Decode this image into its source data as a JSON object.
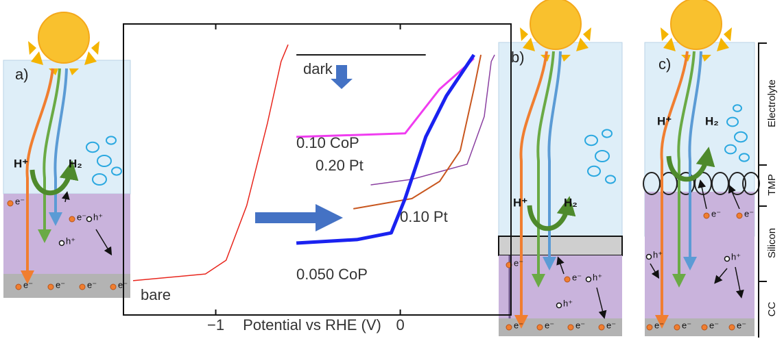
{
  "chart_data": {
    "type": "line",
    "x_label": "Potential vs RHE (V)",
    "xlim": [
      -1.5,
      0.6
    ],
    "xticks": [
      {
        "value": -1,
        "label": "−1"
      },
      0
    ],
    "ylim": [
      0,
      1
    ],
    "series": [
      {
        "name": "bare",
        "color": "#e8251c",
        "x": [
          -1.448,
          -1.056,
          -0.944,
          -0.832,
          -0.72,
          -0.646,
          -0.608
        ],
        "values": [
          0.118,
          0.141,
          0.188,
          0.376,
          0.659,
          0.871,
          0.929
        ]
      },
      {
        "name": "dark",
        "color": "#111111",
        "x": [
          -0.563,
          0.138
        ],
        "values": [
          0.894,
          0.894
        ]
      },
      {
        "name": "0.10 CoP",
        "color": "#f03cf0",
        "x": [
          -0.563,
          0.026,
          0.213,
          0.362,
          0.399
        ],
        "values": [
          0.612,
          0.624,
          0.776,
          0.859,
          0.882
        ]
      },
      {
        "name": "0.20 Pt",
        "color": "#8a3fa0",
        "x": [
          -0.16,
          0.063,
          0.362,
          0.455,
          0.493,
          0.511
        ],
        "values": [
          0.447,
          0.466,
          0.518,
          0.682,
          0.871,
          0.894
        ]
      },
      {
        "name": "0.10 Pt",
        "color": "#c8561e",
        "x": [
          -0.254,
          0.063,
          0.213,
          0.325,
          0.399,
          0.437
        ],
        "values": [
          0.365,
          0.4,
          0.459,
          0.565,
          0.776,
          0.894
        ]
      },
      {
        "name": "0.050 CoP",
        "color": "#1a22f0",
        "x": [
          -0.563,
          -0.235,
          -0.049,
          0.026,
          0.138,
          0.25,
          0.399
        ],
        "values": [
          0.247,
          0.259,
          0.282,
          0.4,
          0.612,
          0.753,
          0.894
        ]
      }
    ]
  },
  "diagrams": {
    "panel_labels": [
      "a)",
      "b)",
      "c)"
    ],
    "proton": "H⁺",
    "hydrogen": "H₂",
    "electron": "e⁻",
    "hole": "h⁺",
    "layers": [
      "Electrolyte",
      "TMP",
      "Silicon",
      "CC"
    ]
  }
}
